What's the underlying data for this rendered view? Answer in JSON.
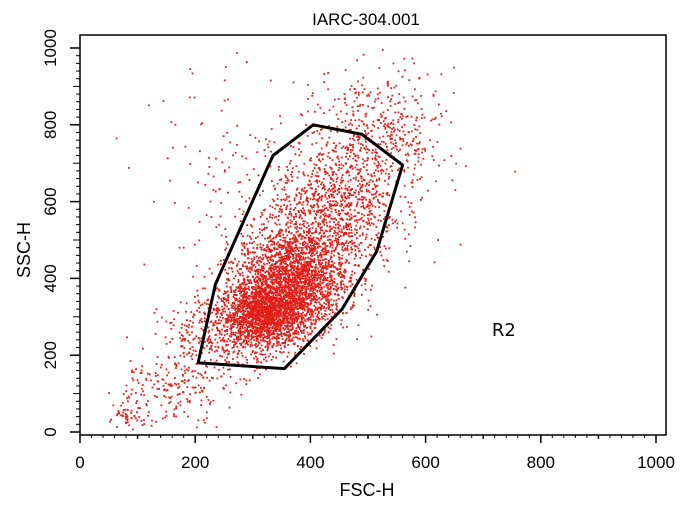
{
  "chart_data": {
    "type": "scatter",
    "title": "IARC-304.001",
    "xlabel": "FSC-H",
    "ylabel": "SSC-H",
    "xlim": [
      0,
      1000
    ],
    "ylim": [
      0,
      1000
    ],
    "x_ticks": [
      "0",
      "200",
      "400",
      "600",
      "800",
      "1000"
    ],
    "y_ticks": [
      "0",
      "200",
      "400",
      "600",
      "800",
      "1000"
    ],
    "grid": false,
    "point_color": "#e0201a",
    "gate": {
      "label": "R2",
      "label_position": [
        715,
        250
      ],
      "color": "#000000",
      "vertices": [
        [
          205,
          180
        ],
        [
          235,
          385
        ],
        [
          335,
          720
        ],
        [
          405,
          800
        ],
        [
          490,
          775
        ],
        [
          560,
          695
        ],
        [
          515,
          470
        ],
        [
          455,
          320
        ],
        [
          355,
          165
        ]
      ]
    },
    "series": [
      {
        "points_summary": "dense population, about 6000 events",
        "clusters": [
          {
            "center": [
              320,
              305
            ],
            "sd": [
              38,
              42
            ],
            "count": 1700
          },
          {
            "center": [
              370,
              400
            ],
            "sd": [
              48,
              70
            ],
            "count": 2200
          },
          {
            "center": [
              440,
              580
            ],
            "sd": [
              55,
              80
            ],
            "count": 900
          },
          {
            "center": [
              520,
              760
            ],
            "sd": [
              55,
              90
            ],
            "count": 500
          },
          {
            "center": [
              250,
              250
            ],
            "sd": [
              55,
              50
            ],
            "count": 350
          },
          {
            "center": [
              150,
              110
            ],
            "sd": [
              55,
              45
            ],
            "count": 200
          },
          {
            "center": [
              80,
              35
            ],
            "sd": [
              15,
              12
            ],
            "count": 40
          },
          {
            "center": [
              280,
              650
            ],
            "sd": [
              90,
              150
            ],
            "count": 150
          }
        ]
      }
    ]
  }
}
